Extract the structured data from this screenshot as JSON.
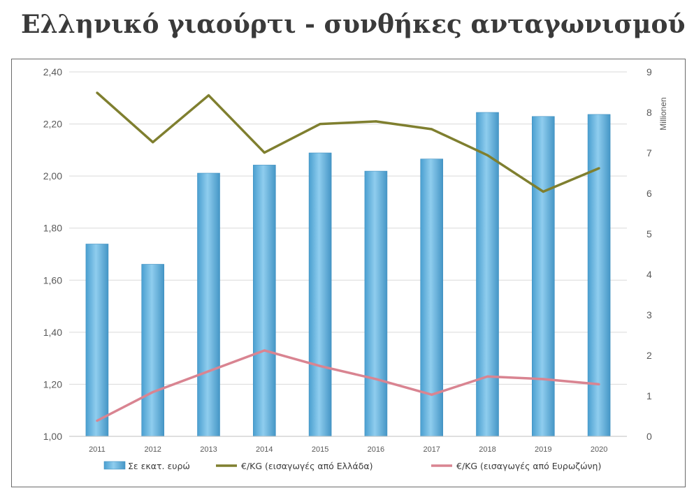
{
  "title": "Ελληνικό γιαούρτι - συνθήκες ανταγωνισμού",
  "chart_data": {
    "type": "bar",
    "categories": [
      "2011",
      "2012",
      "2013",
      "2014",
      "2015",
      "2016",
      "2017",
      "2018",
      "2019",
      "2020"
    ],
    "series": [
      {
        "name": "Σε εκατ. ευρώ",
        "type": "bar",
        "axis": "right",
        "color": "#5fb0dc",
        "values": [
          4.75,
          4.25,
          6.5,
          6.7,
          7.0,
          6.55,
          6.85,
          8.0,
          7.9,
          7.95
        ]
      },
      {
        "name": "€/KG (εισαγωγές από Ελλάδα)",
        "type": "line",
        "axis": "left",
        "color": "#7f7f2f",
        "values": [
          2.32,
          2.13,
          2.31,
          2.09,
          2.2,
          2.21,
          2.18,
          2.08,
          1.94,
          2.03
        ]
      },
      {
        "name": "€/KG (εισαγωγές από Ευρωζώνη)",
        "type": "line",
        "axis": "left",
        "color": "#d98491",
        "values": [
          1.06,
          1.17,
          1.25,
          1.33,
          1.27,
          1.22,
          1.16,
          1.23,
          1.22,
          1.2
        ]
      }
    ],
    "y_left": {
      "min": 1.0,
      "max": 2.4,
      "ticks": [
        "1,00",
        "1,20",
        "1,40",
        "1,60",
        "1,80",
        "2,00",
        "2,20",
        "2,40"
      ]
    },
    "y_right": {
      "min": 0,
      "max": 9,
      "ticks": [
        "0",
        "1",
        "2",
        "3",
        "4",
        "5",
        "6",
        "7",
        "8",
        "9"
      ],
      "unit_label": "Millionen"
    },
    "grid": true,
    "legend_position": "bottom"
  }
}
